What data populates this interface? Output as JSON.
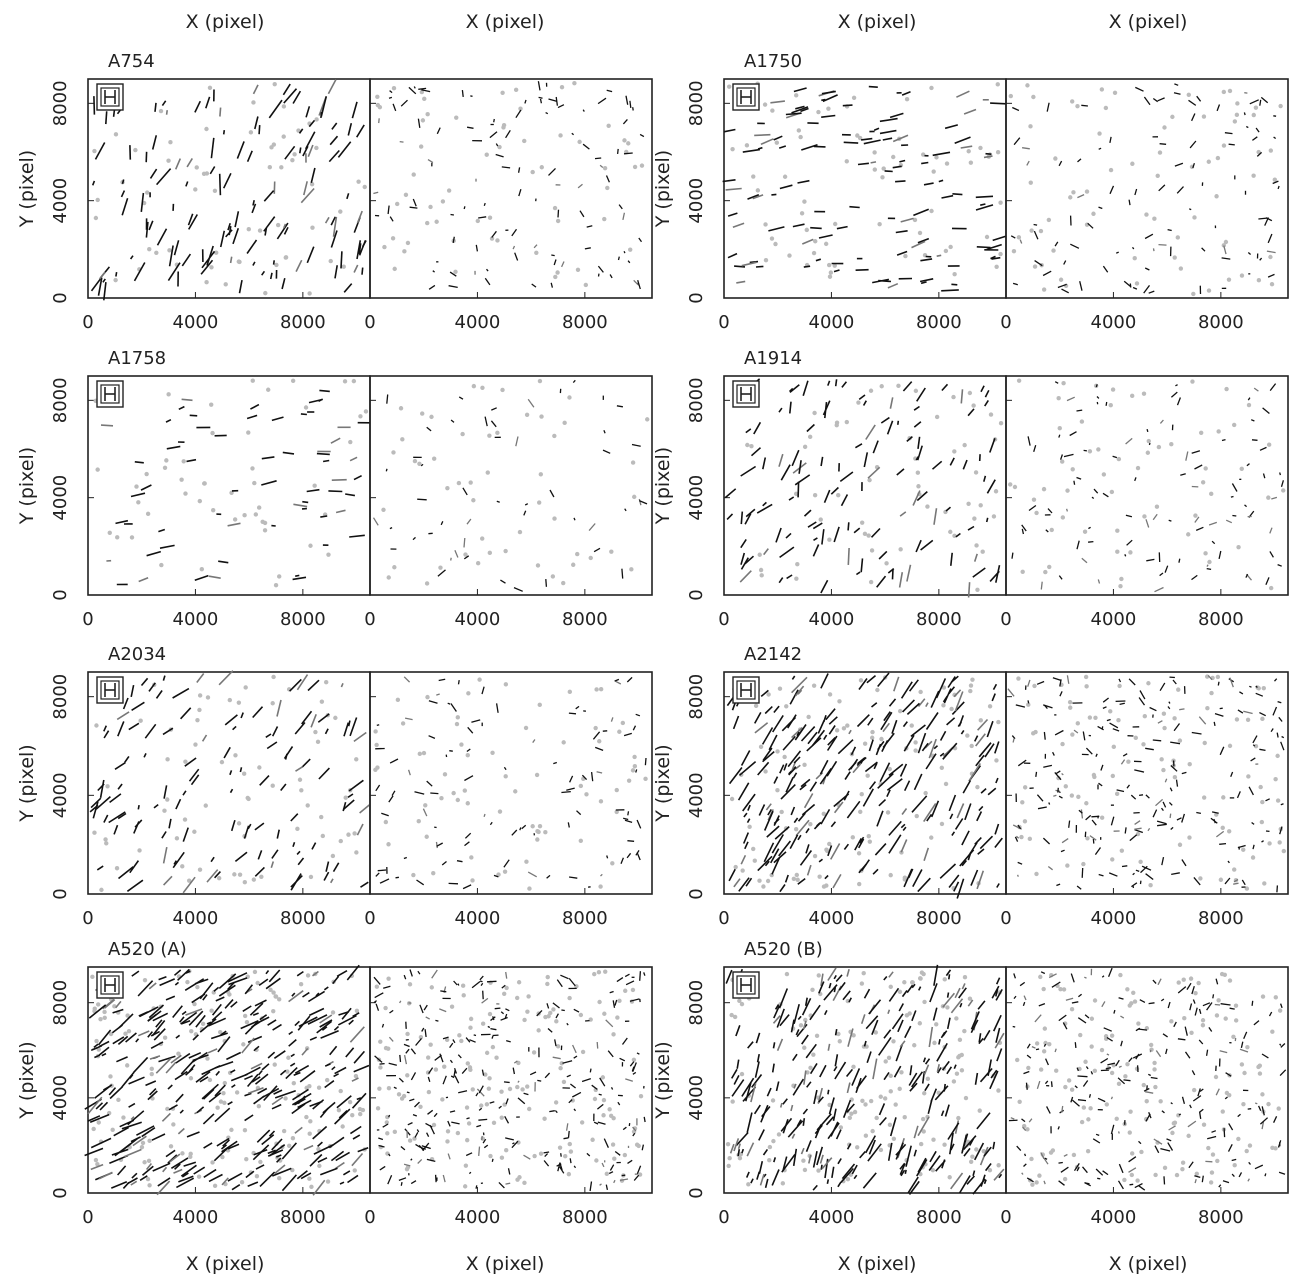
{
  "figure": {
    "x_axis_label": "X (pixel)",
    "y_axis_label": "Y (pixel)"
  },
  "chart_data": [
    {
      "type": "scatter",
      "title": "A754",
      "x_ticks": [
        "0",
        "4000",
        "8000"
      ],
      "y_ticks": [
        "0",
        "4000",
        "8000"
      ],
      "xlim": [
        0,
        10500
      ],
      "ylim": [
        0,
        9000
      ]
    },
    {
      "type": "scatter",
      "title": "A1750",
      "x_ticks": [
        "0",
        "4000",
        "8000"
      ],
      "y_ticks": [
        "0",
        "4000",
        "8000"
      ],
      "xlim": [
        0,
        10500
      ],
      "ylim": [
        0,
        9000
      ]
    },
    {
      "type": "scatter",
      "title": "A1758",
      "x_ticks": [
        "0",
        "4000",
        "8000"
      ],
      "y_ticks": [
        "0",
        "4000",
        "8000"
      ],
      "xlim": [
        0,
        10500
      ],
      "ylim": [
        0,
        9000
      ]
    },
    {
      "type": "scatter",
      "title": "A1914",
      "x_ticks": [
        "0",
        "4000",
        "8000"
      ],
      "y_ticks": [
        "0",
        "4000",
        "8000"
      ],
      "xlim": [
        0,
        10500
      ],
      "ylim": [
        0,
        9000
      ]
    },
    {
      "type": "scatter",
      "title": "A2034",
      "x_ticks": [
        "0",
        "4000",
        "8000"
      ],
      "y_ticks": [
        "0",
        "4000",
        "8000"
      ],
      "xlim": [
        0,
        10500
      ],
      "ylim": [
        0,
        9000
      ]
    },
    {
      "type": "scatter",
      "title": "A2142",
      "x_ticks": [
        "0",
        "4000",
        "8000"
      ],
      "y_ticks": [
        "0",
        "4000",
        "8000"
      ],
      "xlim": [
        0,
        10500
      ],
      "ylim": [
        0,
        9000
      ]
    },
    {
      "type": "scatter",
      "title": "A520 (A)",
      "x_ticks": [
        "0",
        "4000",
        "8000"
      ],
      "y_ticks": [
        "0",
        "4000",
        "8000"
      ],
      "xlim": [
        0,
        10500
      ],
      "ylim": [
        0,
        9500
      ]
    },
    {
      "type": "scatter",
      "title": "A520 (B)",
      "x_ticks": [
        "0",
        "4000",
        "8000"
      ],
      "y_ticks": [
        "0",
        "4000",
        "8000"
      ],
      "xlim": [
        0,
        10500
      ],
      "ylim": [
        0,
        9500
      ]
    }
  ]
}
